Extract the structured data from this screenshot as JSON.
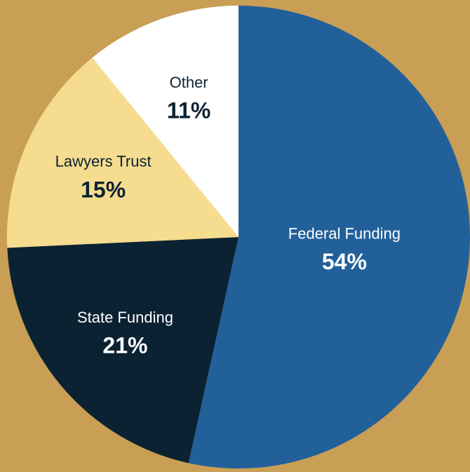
{
  "chart_data": {
    "type": "pie",
    "categories": [
      "Federal Funding",
      "State Funding",
      "Lawyers Trust",
      "Other"
    ],
    "values": [
      54,
      21,
      15,
      11
    ],
    "value_labels": [
      "54%",
      "21%",
      "15%",
      "11%"
    ],
    "colors": [
      "#22609a",
      "#0b2233",
      "#f5dc8f",
      "#ffffff"
    ]
  }
}
